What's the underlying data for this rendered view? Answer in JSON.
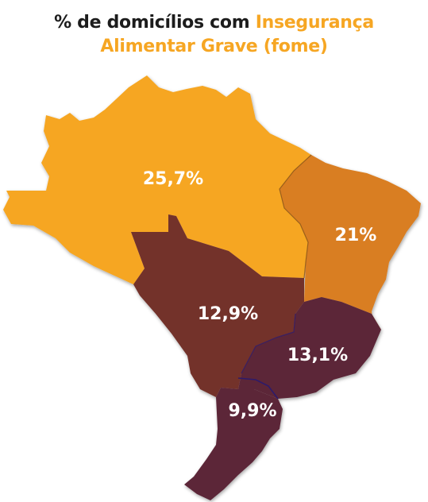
{
  "title": {
    "part1": "% de domicílios com ",
    "part2": "Insegurança",
    "part3": "Alimentar Grave (fome)"
  },
  "colors": {
    "title_dark": "#1c1c1c",
    "title_accent": "#f6a623",
    "norte": "#f6a623",
    "nordeste": "#d97e22",
    "centro_oeste": "#73302b",
    "sudeste": "#5c2839",
    "sul": "#5c2839"
  },
  "regions": [
    {
      "id": "norte",
      "value": "25,7%"
    },
    {
      "id": "nordeste",
      "value": "21%"
    },
    {
      "id": "centro_oeste",
      "value": "12,9%"
    },
    {
      "id": "sudeste",
      "value": "13,1%"
    },
    {
      "id": "sul",
      "value": "9,9%"
    }
  ]
}
